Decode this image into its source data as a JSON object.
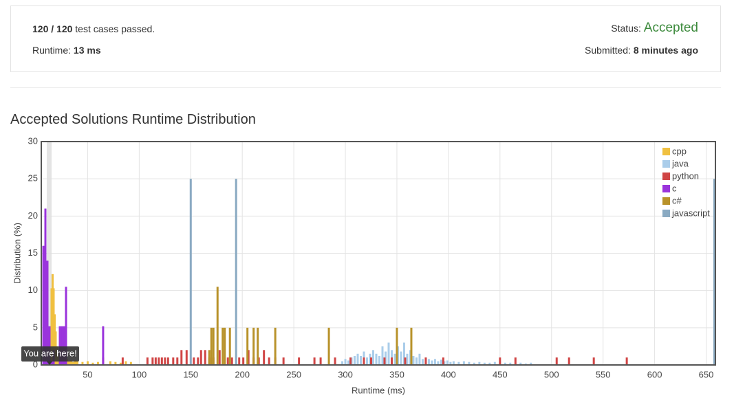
{
  "header": {
    "passed": "120 / 120",
    "passed_text": "test cases passed.",
    "runtime_label": "Runtime:",
    "runtime": "13 ms",
    "status_label": "Status:",
    "status": "Accepted",
    "submitted_label": "Submitted:",
    "submitted": "8 minutes ago"
  },
  "chart_data": {
    "type": "bar",
    "title": "Accepted Solutions Runtime Distribution",
    "x_label": "Runtime (ms)",
    "y_label": "Distribution (%)",
    "xlim": [
      5,
      659
    ],
    "xticks": [
      50,
      100,
      150,
      200,
      250,
      300,
      350,
      400,
      450,
      500,
      550,
      600,
      650
    ],
    "ylim": [
      0,
      30
    ],
    "yticks": [
      0,
      5,
      10,
      15,
      20,
      25,
      30
    ],
    "grid": true,
    "legend": "upper right",
    "marker": {
      "x": 13,
      "label": "You are here!"
    },
    "series": [
      {
        "name": "cpp",
        "color": "#f0c040",
        "x": [
          14,
          15,
          16,
          17,
          18,
          19,
          20,
          21,
          22,
          24,
          26,
          28,
          30,
          32,
          34,
          36,
          38,
          40,
          45,
          50,
          55,
          60,
          72,
          77,
          82,
          87,
          92
        ],
        "values": [
          3,
          10.3,
          12.2,
          10.3,
          6.8,
          4.5,
          2.5,
          1.5,
          1,
          0.8,
          0.6,
          0.5,
          0.8,
          0.5,
          0.6,
          0.4,
          0.6,
          0.5,
          0.4,
          0.5,
          0.3,
          0.4,
          0.5,
          0.4,
          0.3,
          0.5,
          0.4
        ]
      },
      {
        "name": "java",
        "color": "#aacdea",
        "x": [
          290,
          297,
          300,
          303,
          306,
          309,
          312,
          315,
          318,
          321,
          324,
          327,
          330,
          333,
          336,
          339,
          342,
          345,
          348,
          351,
          354,
          357,
          360,
          363,
          366,
          369,
          372,
          375,
          378,
          381,
          384,
          387,
          390,
          393,
          396,
          399,
          402,
          405,
          410,
          415,
          420,
          425,
          430,
          435,
          440,
          445,
          450,
          455,
          460,
          465,
          470,
          475,
          480
        ],
        "values": [
          0.3,
          0.5,
          0.8,
          0.6,
          1,
          1.2,
          1.5,
          1.2,
          1.8,
          1,
          1.5,
          2,
          1.5,
          1.2,
          2.5,
          1.8,
          3,
          2,
          1.5,
          2.5,
          1.8,
          3,
          1.5,
          2,
          1.2,
          1,
          1.5,
          0.8,
          1,
          0.8,
          0.6,
          0.8,
          0.5,
          0.7,
          0.5,
          0.6,
          0.4,
          0.5,
          0.4,
          0.5,
          0.4,
          0.3,
          0.4,
          0.3,
          0.3,
          0.4,
          0.5,
          0.3,
          0.3,
          0.2,
          0.3,
          0.2,
          0.3
        ]
      },
      {
        "name": "python",
        "color": "#d04545",
        "x": [
          65,
          84,
          108,
          113,
          116,
          119,
          122,
          125,
          128,
          133,
          137,
          141,
          146,
          153,
          157,
          160,
          164,
          168,
          172,
          178,
          186,
          190,
          197,
          201,
          206,
          211,
          216,
          221,
          226,
          232,
          240,
          255,
          270,
          276,
          290,
          305,
          318,
          325,
          338,
          345,
          358,
          378,
          395,
          450,
          465,
          505,
          517,
          541,
          573
        ],
        "values": [
          1,
          1,
          1,
          1,
          1,
          1,
          1,
          1,
          1,
          1,
          1,
          2,
          2,
          1,
          1,
          2,
          2,
          1,
          1,
          2,
          1,
          1,
          1,
          1,
          2,
          1,
          1,
          2,
          1,
          1,
          1,
          1,
          1,
          1,
          1,
          1,
          1,
          1,
          1,
          1,
          1,
          1,
          1,
          1,
          1,
          1,
          1,
          1,
          1
        ]
      },
      {
        "name": "c",
        "color": "#9a34dc",
        "x": [
          7,
          9,
          11,
          13,
          15,
          17,
          23,
          25,
          27,
          29,
          65
        ],
        "values": [
          16,
          21,
          14,
          5.2,
          0.5,
          2,
          5.2,
          5.2,
          5.2,
          10.5,
          5.2
        ]
      },
      {
        "name": "c#",
        "color": "#b8922a",
        "x": [
          168,
          170,
          172,
          176,
          181,
          183,
          188,
          205,
          211,
          215,
          232,
          284,
          350,
          364
        ],
        "values": [
          2,
          5,
          5,
          10.5,
          5,
          5,
          5,
          5,
          5,
          5,
          5,
          5,
          5,
          5
        ]
      },
      {
        "name": "javascript",
        "color": "#8aaac2",
        "x": [
          150,
          194,
          658
        ],
        "values": [
          25,
          25,
          25
        ]
      }
    ]
  }
}
